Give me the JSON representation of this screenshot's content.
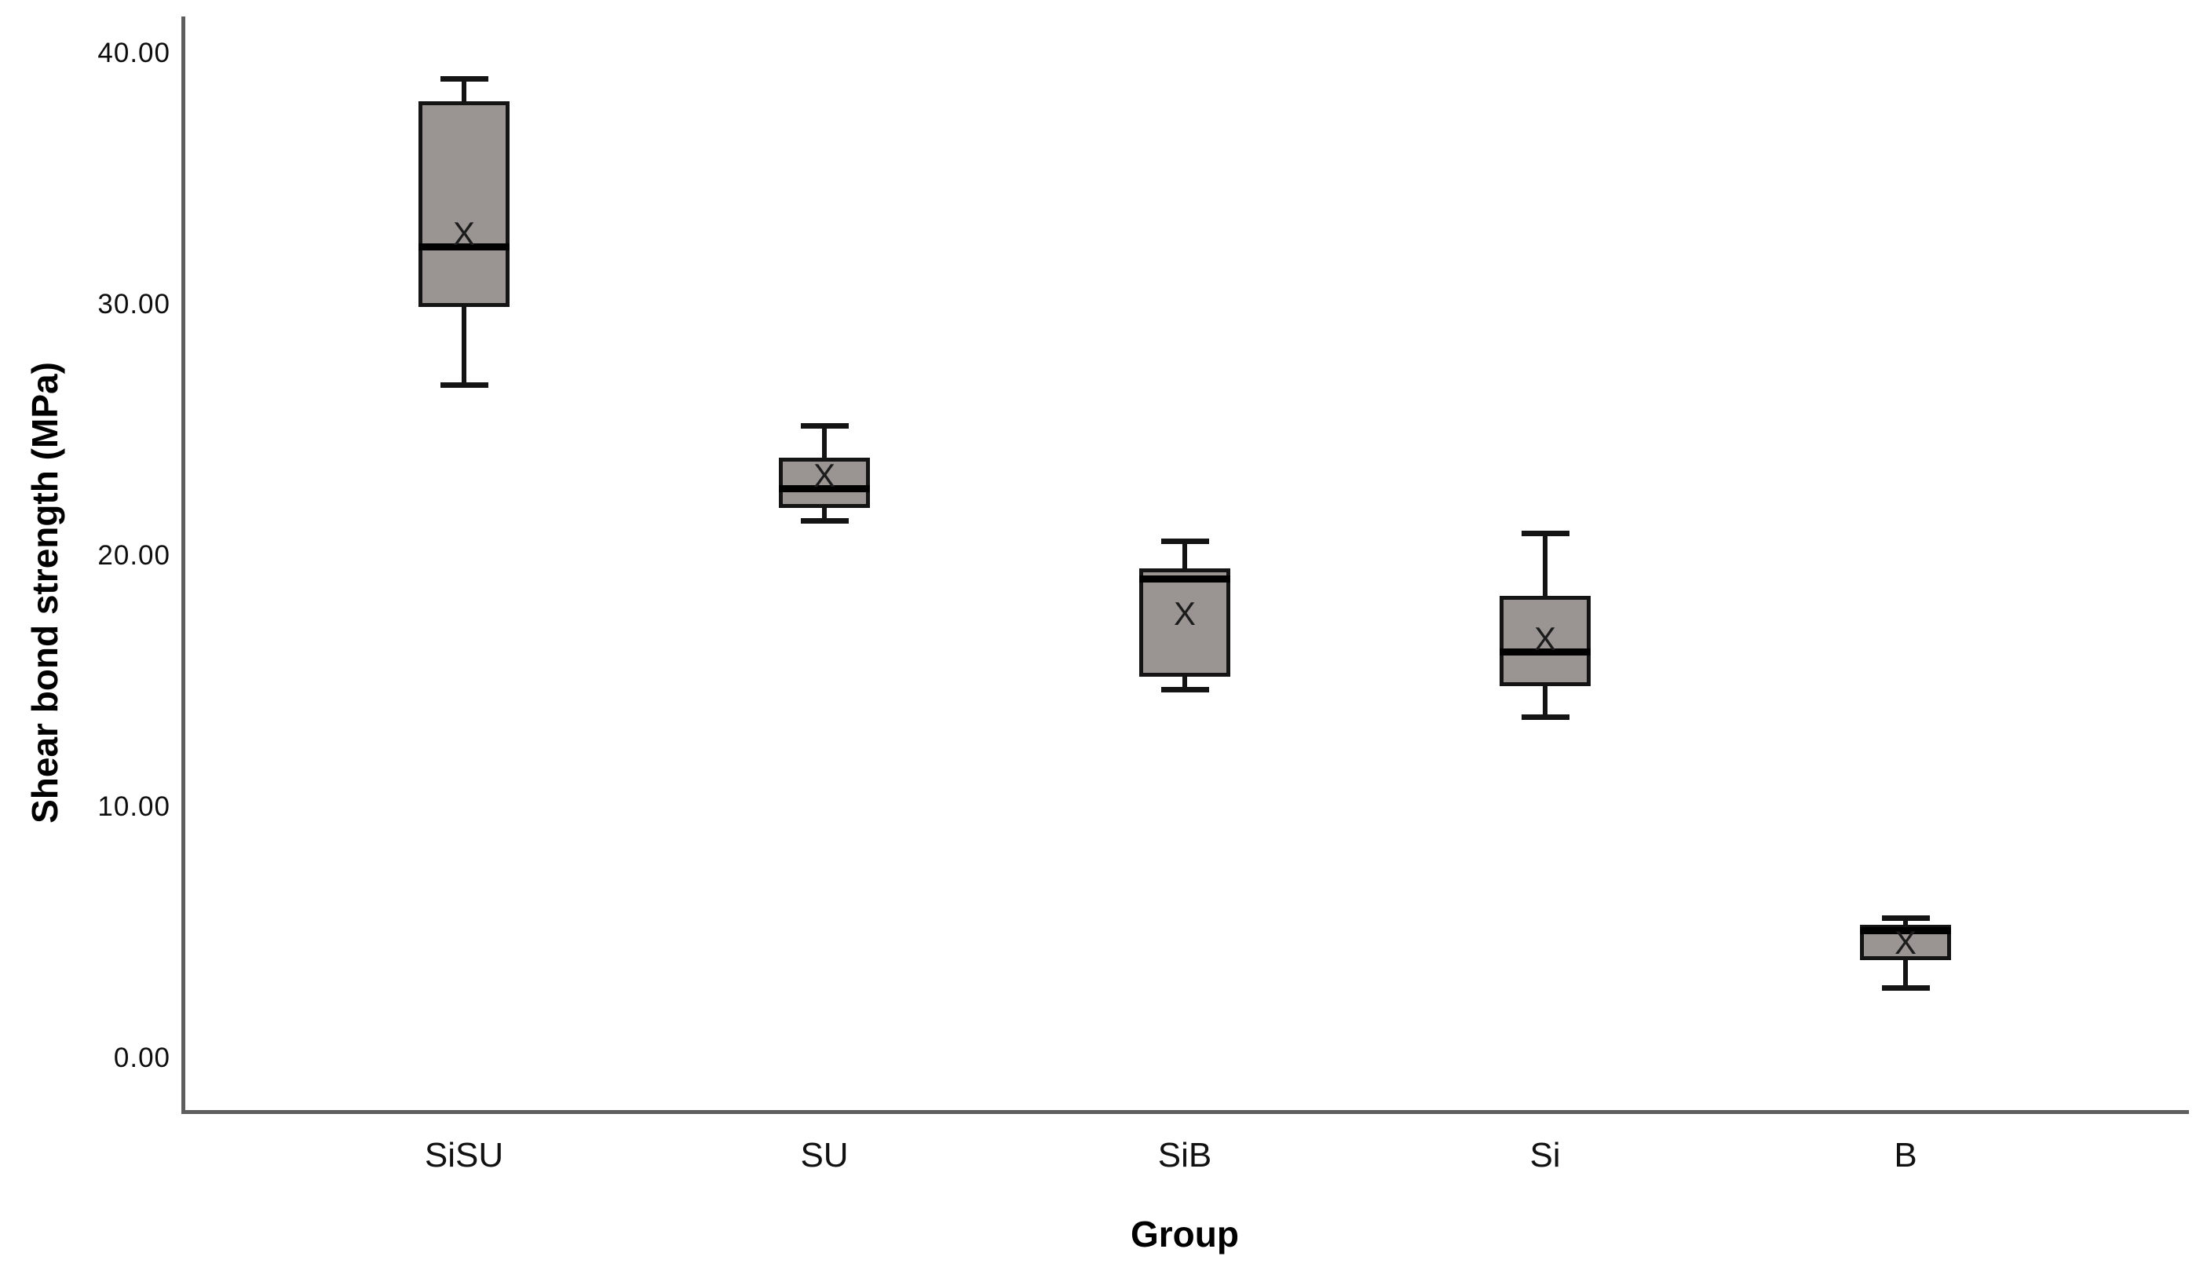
{
  "chart_data": {
    "type": "boxplot",
    "title": "",
    "xlabel": "Group",
    "ylabel": "Shear bond strength (MPa)",
    "categories": [
      "SiSU",
      "SU",
      "SiB",
      "Si",
      "B"
    ],
    "y_ticks": [
      {
        "label": "40.00",
        "value": 40
      },
      {
        "label": "30.00",
        "value": 30
      },
      {
        "label": "20.00",
        "value": 20
      },
      {
        "label": "10.00",
        "value": 10
      },
      {
        "label": "0.00",
        "value": 0
      }
    ],
    "ylim": [
      -2.1,
      41.5
    ],
    "grid": false,
    "legend": "none",
    "mean_marker_glyph": "X",
    "series": [
      {
        "group": "SiSU",
        "min": 26.8,
        "q1": 29.9,
        "median": 32.3,
        "q3": 38.1,
        "max": 39.0,
        "mean": 32.8
      },
      {
        "group": "SU",
        "min": 21.4,
        "q1": 21.9,
        "median": 22.7,
        "q3": 23.9,
        "max": 25.2,
        "mean": 23.2
      },
      {
        "group": "SiB",
        "min": 14.7,
        "q1": 15.2,
        "median": 19.1,
        "q3": 19.5,
        "max": 20.6,
        "mean": 17.7
      },
      {
        "group": "Si",
        "min": 13.6,
        "q1": 14.8,
        "median": 16.2,
        "q3": 18.4,
        "max": 20.9,
        "mean": 16.7
      },
      {
        "group": "B",
        "min": 2.8,
        "q1": 3.9,
        "median": 5.1,
        "q3": 5.3,
        "max": 5.6,
        "mean": 4.6
      }
    ],
    "colors": {
      "box_fill": "#9a9492",
      "box_border": "#141414",
      "median": "#000000",
      "whisker": "#141414",
      "axis_line": "#5e5e5e",
      "text": "#000000",
      "background": "#ffffff"
    }
  }
}
